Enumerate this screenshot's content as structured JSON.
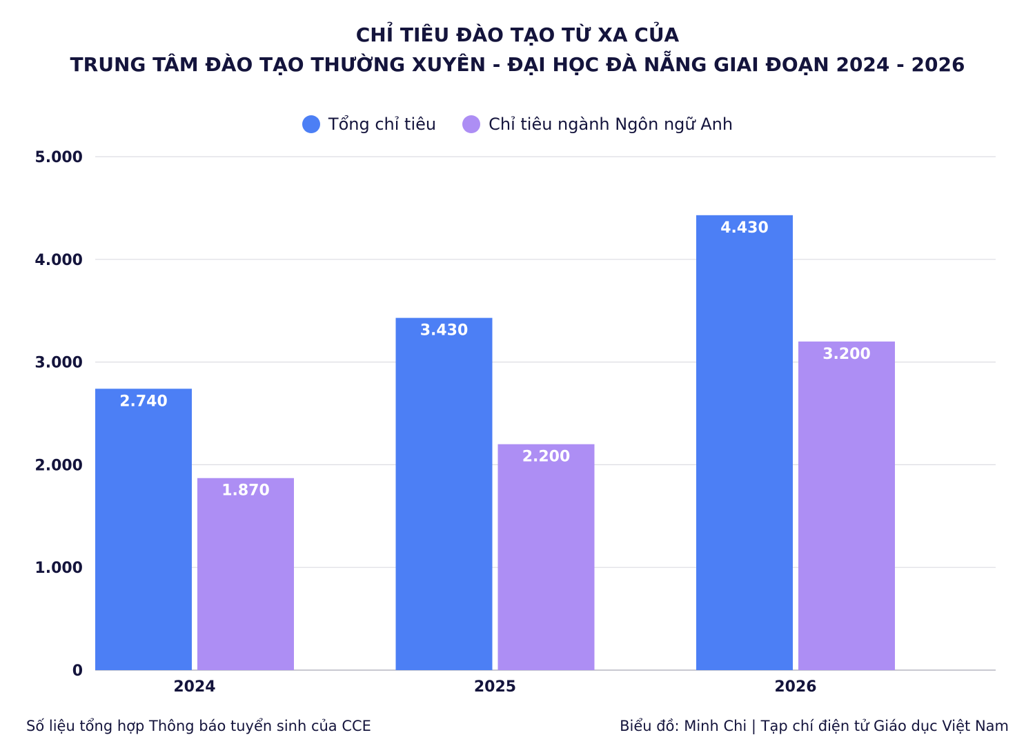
{
  "title_line1": "CHỈ TIÊU ĐÀO TẠO TỪ XA CỦA",
  "title_line2": "TRUNG TÂM ĐÀO TẠO THƯỜNG XUYÊN - ĐẠI HỌC ĐÀ NẴNG GIAI ĐOẠN 2024 - 2026",
  "footer": {
    "source": "Số liệu tổng hợp Thông báo tuyển sinh của CCE",
    "credit": "Biểu đồ: Minh Chi | Tạp chí điện tử Giáo dục Việt Nam"
  },
  "chart_data": {
    "type": "bar",
    "title": "CHỈ TIÊU ĐÀO TẠO TỪ XA CỦA TRUNG TÂM ĐÀO TẠO THƯỜNG XUYÊN - ĐẠI HỌC ĐÀ NẴNG GIAI ĐOẠN 2024 - 2026",
    "categories": [
      "2024",
      "2025",
      "2026"
    ],
    "series": [
      {
        "name": "Tổng chỉ tiêu",
        "values": [
          2740,
          3430,
          4430
        ],
        "labels": [
          "2.740",
          "3.430",
          "4.430"
        ],
        "color": "#4c7ff5"
      },
      {
        "name": "Chỉ tiêu ngành Ngôn ngữ Anh",
        "values": [
          1870,
          2200,
          3200
        ],
        "labels": [
          "1.870",
          "2.200",
          "3.200"
        ],
        "color": "#ad8ef4"
      }
    ],
    "ylim": [
      0,
      5000
    ],
    "yticks": [
      0,
      1000,
      2000,
      3000,
      4000,
      5000
    ],
    "ytick_labels": [
      "0",
      "1.000",
      "2.000",
      "3.000",
      "4.000",
      "5.000"
    ],
    "grid": true,
    "legend": "top-center",
    "xlabel": "",
    "ylabel": ""
  }
}
